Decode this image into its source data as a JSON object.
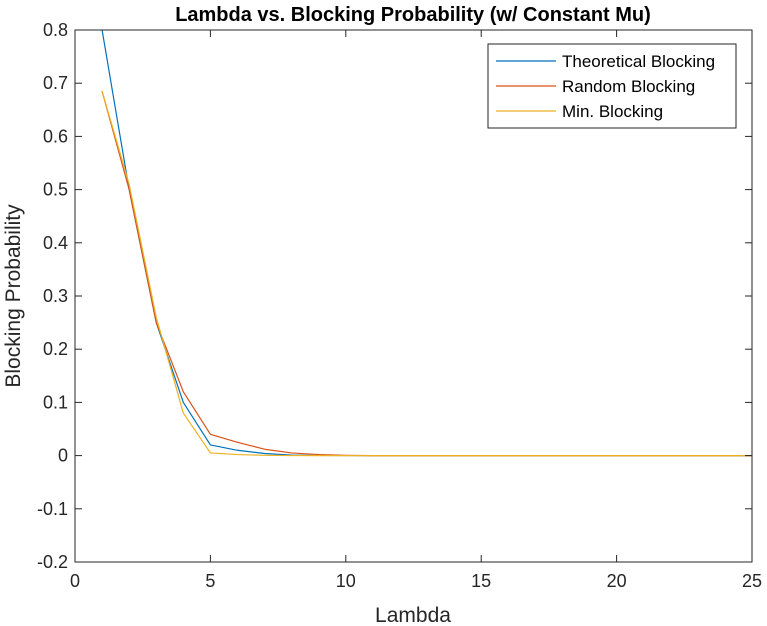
{
  "chart_data": {
    "type": "line",
    "title": "Lambda vs. Blocking Probability (w/ Constant Mu)",
    "xlabel": "Lambda",
    "ylabel": "Blocking Probability",
    "xlim": [
      0,
      25
    ],
    "ylim": [
      -0.2,
      0.8
    ],
    "xticks": [
      0,
      5,
      10,
      15,
      20,
      25
    ],
    "yticks": [
      -0.2,
      -0.1,
      0,
      0.1,
      0.2,
      0.3,
      0.4,
      0.5,
      0.6,
      0.7,
      0.8
    ],
    "x_tick_labels": [
      "0",
      "5",
      "10",
      "15",
      "20",
      "25"
    ],
    "y_tick_labels": [
      "-0.2",
      "-0.1",
      "0",
      "0.1",
      "0.2",
      "0.3",
      "0.4",
      "0.5",
      "0.6",
      "0.7",
      "0.8"
    ],
    "grid": false,
    "legend_position": "top-right",
    "x": [
      1,
      2,
      3,
      4,
      5,
      6,
      7,
      8,
      9,
      10,
      11,
      12,
      13,
      14,
      15,
      16,
      17,
      18,
      19,
      20,
      21,
      22,
      23,
      24,
      25
    ],
    "series": [
      {
        "name": "Theoretical Blocking",
        "color": "#0072BD",
        "values": [
          0.8,
          0.5,
          0.25,
          0.1,
          0.02,
          0.01,
          0.004,
          0.001,
          0.0003,
          0.0001,
          0,
          0,
          0,
          0,
          0,
          0,
          0,
          0,
          0,
          0,
          0,
          0,
          0,
          0,
          0
        ]
      },
      {
        "name": "Random Blocking",
        "color": "#D95319",
        "values": [
          0.685,
          0.5,
          0.25,
          0.12,
          0.04,
          0.025,
          0.012,
          0.005,
          0.002,
          0.0005,
          0,
          0,
          0,
          0,
          0,
          0,
          0,
          0,
          0,
          0,
          0,
          0,
          0,
          0,
          0
        ]
      },
      {
        "name": "Min. Blocking",
        "color": "#EDB120",
        "values": [
          0.685,
          0.51,
          0.26,
          0.08,
          0.005,
          0.002,
          0.0005,
          0.0001,
          0,
          0,
          0,
          0,
          0,
          0,
          0,
          0,
          0,
          0,
          0,
          0,
          0,
          0,
          0,
          0,
          0
        ]
      }
    ]
  }
}
